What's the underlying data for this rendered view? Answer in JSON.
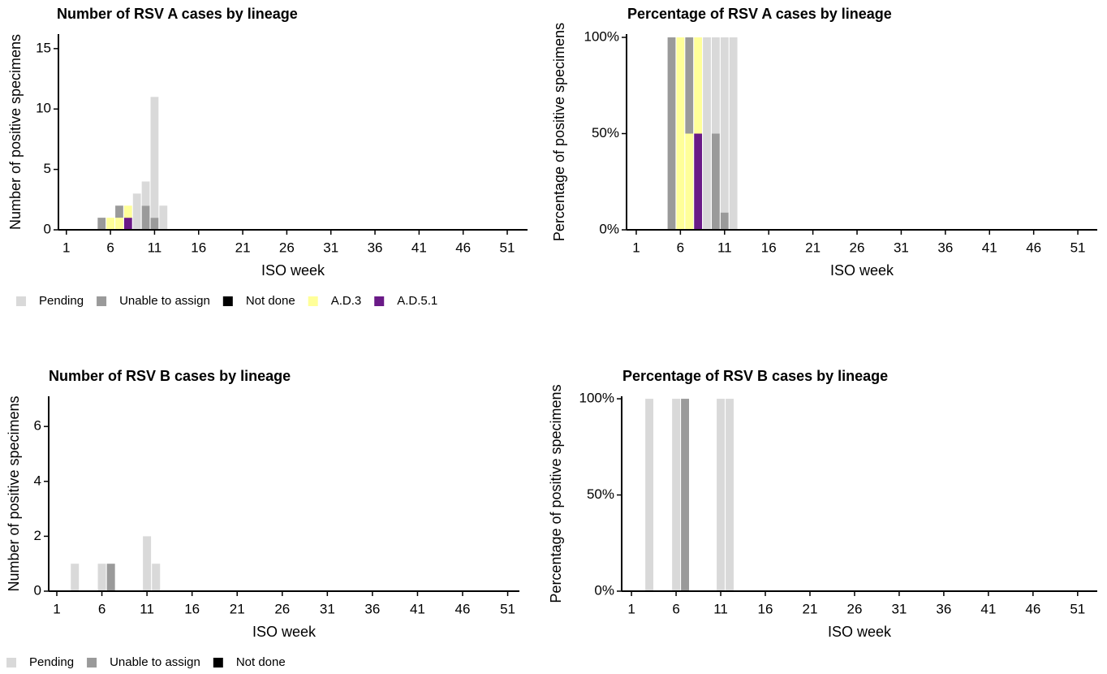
{
  "chart_data": [
    {
      "type": "bar",
      "stacked": true,
      "legend": true,
      "title": "Number of RSV A cases by lineage",
      "x_label": "ISO week",
      "y_label": "Number of positive specimens",
      "x": [
        5,
        6,
        7,
        8,
        9,
        10,
        11,
        12
      ],
      "series": [
        {
          "name": "Pending",
          "color": "#d9d9d9",
          "values": [
            0,
            0,
            0,
            0,
            3,
            2,
            10,
            2
          ]
        },
        {
          "name": "Unable to assign",
          "color": "#9a9a9a",
          "values": [
            1,
            0,
            1,
            0,
            0,
            2,
            1,
            0
          ]
        },
        {
          "name": "Not done",
          "color": "#000000",
          "values": [
            0,
            0,
            0,
            0,
            0,
            0,
            0,
            0
          ]
        },
        {
          "name": "A.D.3",
          "color": "#ffff99",
          "values": [
            0,
            1,
            1,
            1,
            0,
            0,
            0,
            0
          ]
        },
        {
          "name": "A.D.5.1",
          "color": "#6a1a87",
          "values": [
            0,
            0,
            0,
            1,
            0,
            0,
            0,
            0
          ]
        }
      ],
      "xlim": [
        0.1,
        53.3
      ],
      "xticks": [
        1,
        6,
        11,
        16,
        21,
        26,
        31,
        36,
        41,
        46,
        51
      ],
      "ylim": [
        0,
        16.2
      ],
      "yticks": [
        0,
        5,
        10,
        15
      ]
    },
    {
      "type": "bar",
      "stacked": true,
      "legend": false,
      "title": "Percentage of RSV A cases by lineage",
      "x_label": "ISO week",
      "y_label": "Percentage of positive specimens",
      "x": [
        5,
        6,
        7,
        8,
        9,
        10,
        11,
        12
      ],
      "series": [
        {
          "name": "Pending",
          "color": "#d9d9d9",
          "values": [
            0,
            0,
            0,
            0,
            100,
            50,
            91,
            100
          ]
        },
        {
          "name": "Unable to assign",
          "color": "#9a9a9a",
          "values": [
            100,
            0,
            50,
            0,
            0,
            50,
            9,
            0
          ]
        },
        {
          "name": "Not done",
          "color": "#000000",
          "values": [
            0,
            0,
            0,
            0,
            0,
            0,
            0,
            0
          ]
        },
        {
          "name": "A.D.3",
          "color": "#ffff99",
          "values": [
            0,
            100,
            50,
            50,
            0,
            0,
            0,
            0
          ]
        },
        {
          "name": "A.D.5.1",
          "color": "#6a1a87",
          "values": [
            0,
            0,
            0,
            50,
            0,
            0,
            0,
            0
          ]
        }
      ],
      "xlim": [
        -0.1,
        53.2
      ],
      "xticks": [
        1,
        6,
        11,
        16,
        21,
        26,
        31,
        36,
        41,
        46,
        51
      ],
      "ylim": [
        0,
        101.7
      ],
      "yticks": [
        {
          "value": 0,
          "label": "0%"
        },
        {
          "value": 50,
          "label": "50%"
        },
        {
          "value": 100,
          "label": "100%"
        }
      ]
    },
    {
      "type": "bar",
      "stacked": true,
      "legend": true,
      "title": "Number of RSV B cases by lineage",
      "x_label": "ISO week",
      "y_label": "Number of positive specimens",
      "x": [
        3,
        6,
        7,
        11,
        12
      ],
      "series": [
        {
          "name": "Pending",
          "color": "#d9d9d9",
          "values": [
            1,
            1,
            0,
            2,
            1
          ]
        },
        {
          "name": "Unable to assign",
          "color": "#9a9a9a",
          "values": [
            0,
            0,
            1,
            0,
            0
          ]
        },
        {
          "name": "Not done",
          "color": "#000000",
          "values": [
            0,
            0,
            0,
            0,
            0
          ]
        }
      ],
      "xlim": [
        0.1,
        52.3
      ],
      "xticks": [
        1,
        6,
        11,
        16,
        21,
        26,
        31,
        36,
        41,
        46,
        51
      ],
      "ylim": [
        0,
        7.1
      ],
      "yticks": [
        0,
        2,
        4,
        6
      ]
    },
    {
      "type": "bar",
      "stacked": true,
      "legend": false,
      "title": "Percentage of RSV B cases by lineage",
      "x_label": "ISO week",
      "y_label": "Percentage of positive specimens",
      "x": [
        3,
        6,
        7,
        11,
        12
      ],
      "series": [
        {
          "name": "Pending",
          "color": "#d9d9d9",
          "values": [
            100,
            100,
            0,
            100,
            100
          ]
        },
        {
          "name": "Unable to assign",
          "color": "#9a9a9a",
          "values": [
            0,
            0,
            100,
            0,
            0
          ]
        },
        {
          "name": "Not done",
          "color": "#000000",
          "values": [
            0,
            0,
            0,
            0,
            0
          ]
        }
      ],
      "xlim": [
        -0.1,
        53.2
      ],
      "xticks": [
        1,
        6,
        11,
        16,
        21,
        26,
        31,
        36,
        41,
        46,
        51
      ],
      "ylim": [
        0,
        101.3
      ],
      "yticks": [
        {
          "value": 0,
          "label": "0%"
        },
        {
          "value": 50,
          "label": "50%"
        },
        {
          "value": 100,
          "label": "100%"
        }
      ]
    }
  ]
}
